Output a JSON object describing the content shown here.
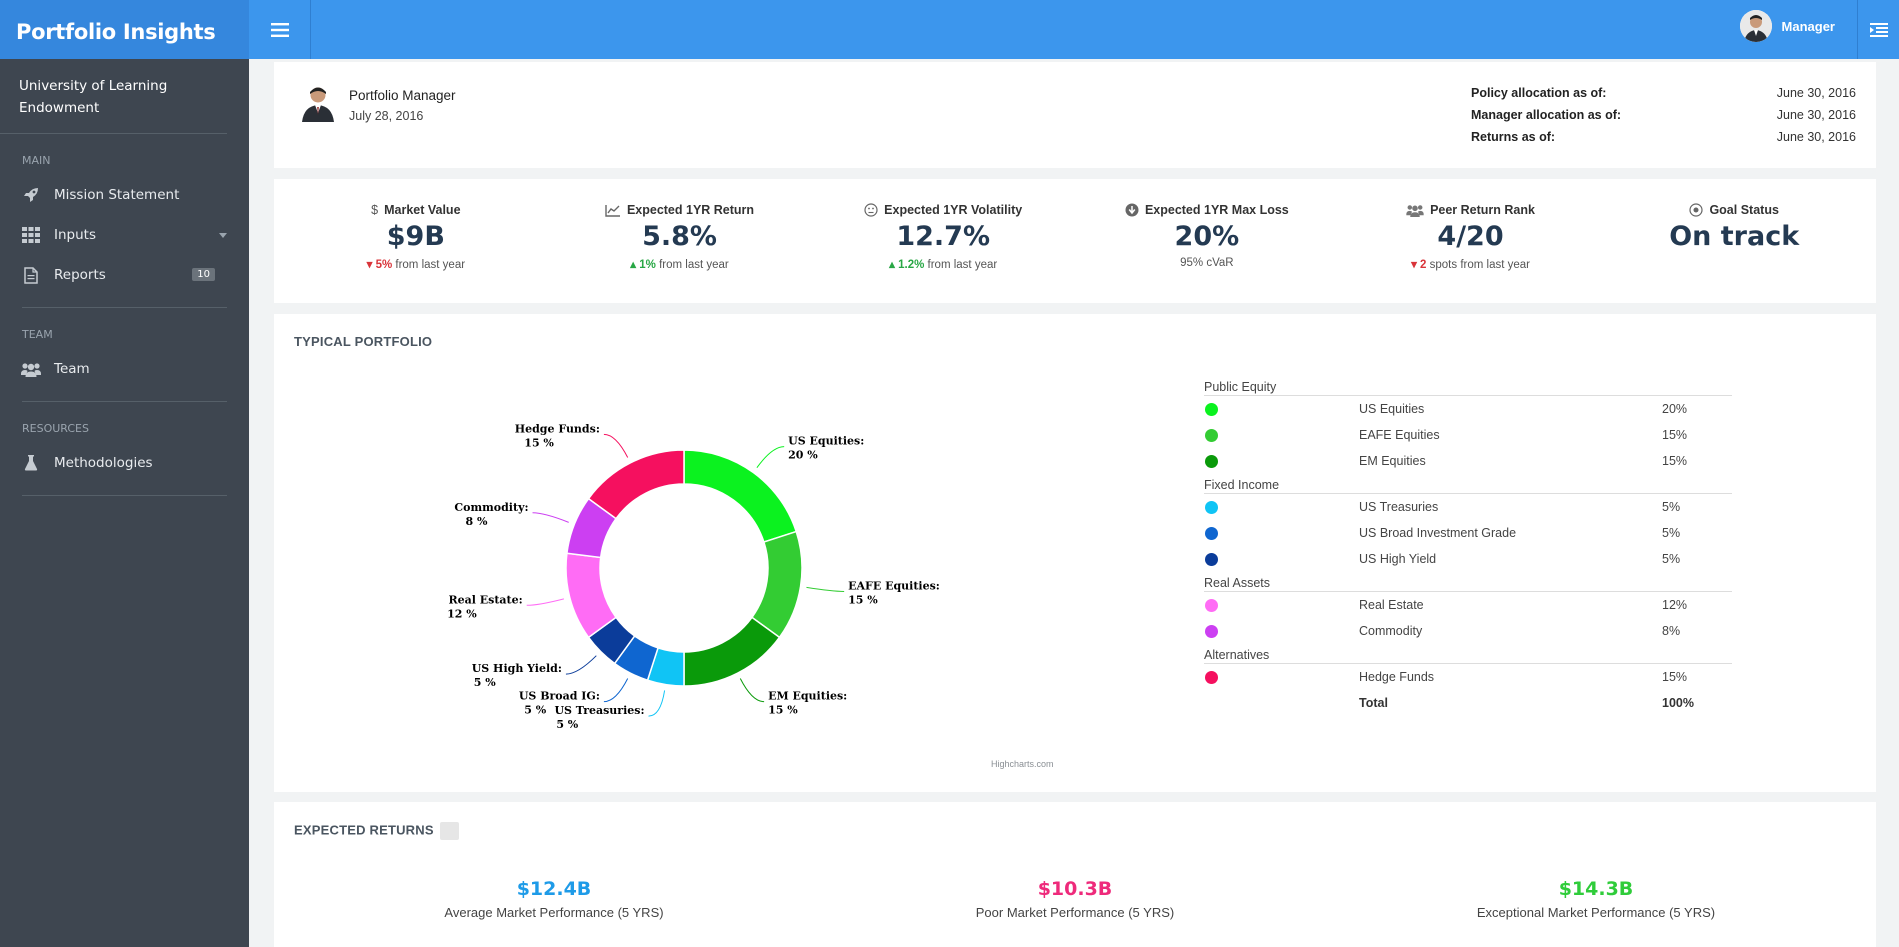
{
  "app": {
    "title": "Portfolio Insights",
    "user_name": "Manager"
  },
  "sidebar": {
    "org_name": "University of Learning Endowment",
    "sections": [
      {
        "title": "MAIN"
      },
      {
        "title": "TEAM"
      },
      {
        "title": "RESOURCES"
      }
    ],
    "items": [
      {
        "label": "Mission Statement",
        "icon": "rocket-icon"
      },
      {
        "label": "Inputs",
        "icon": "grid-icon"
      },
      {
        "label": "Reports",
        "icon": "document-icon",
        "badge": "10"
      },
      {
        "label": "Team",
        "icon": "users-icon"
      },
      {
        "label": "Methodologies",
        "icon": "flask-icon"
      }
    ]
  },
  "manager": {
    "title": "Portfolio Manager",
    "date": "July 28, 2016",
    "allocations": [
      {
        "label": "Policy allocation as of:",
        "value": "June 30, 2016"
      },
      {
        "label": "Manager allocation as of:",
        "value": "June 30, 2016"
      },
      {
        "label": "Returns as of:",
        "value": "June 30, 2016"
      }
    ]
  },
  "kpis": [
    {
      "label": "Market Value",
      "icon": "dollar-icon",
      "value": "$9B",
      "change": "5%",
      "direction": "down",
      "sub": "from last year"
    },
    {
      "label": "Expected 1YR Return",
      "icon": "line-chart-icon",
      "value": "5.8%",
      "change": "1%",
      "direction": "up",
      "sub": "from last year"
    },
    {
      "label": "Expected 1YR Volatility",
      "icon": "meh-face-icon",
      "value": "12.7%",
      "change": "1.2%",
      "direction": "up",
      "sub": "from last year"
    },
    {
      "label": "Expected 1YR Max Loss",
      "icon": "arrow-circle-down-icon",
      "value": "20%",
      "change": "",
      "direction": "none",
      "sub": "95% cVaR"
    },
    {
      "label": "Peer Return Rank",
      "icon": "users-icon",
      "value": "4/20",
      "change": "2",
      "direction": "down",
      "sub": "spots from last year"
    },
    {
      "label": "Goal Status",
      "icon": "target-icon",
      "value": "On track",
      "change": "",
      "direction": "none",
      "sub": ""
    }
  ],
  "portfolio": {
    "title": "TYPICAL PORTFOLIO",
    "credits": "Highcharts.com",
    "groups": [
      {
        "name": "Public Equity",
        "rows": [
          {
            "name": "US Equities",
            "pct": "20%",
            "color": "#0bf21f"
          },
          {
            "name": "EAFE Equities",
            "pct": "15%",
            "color": "#33cc33"
          },
          {
            "name": "EM Equities",
            "pct": "15%",
            "color": "#0a9a0a"
          }
        ]
      },
      {
        "name": "Fixed Income",
        "rows": [
          {
            "name": "US Treasuries",
            "pct": "5%",
            "color": "#10c4f5"
          },
          {
            "name": "US Broad Investment Grade",
            "pct": "5%",
            "color": "#0f66d0"
          },
          {
            "name": "US High Yield",
            "pct": "5%",
            "color": "#0b3c9a"
          }
        ]
      },
      {
        "name": "Real Assets",
        "rows": [
          {
            "name": "Real Estate",
            "pct": "12%",
            "color": "#ff6cf5"
          },
          {
            "name": "Commodity",
            "pct": "8%",
            "color": "#cc3ff2"
          }
        ]
      },
      {
        "name": "Alternatives",
        "rows": [
          {
            "name": "Hedge Funds",
            "pct": "15%",
            "color": "#f5105f"
          }
        ]
      }
    ],
    "total_label": "Total",
    "total_pct": "100%"
  },
  "chart_data": {
    "type": "pie",
    "title": "",
    "categories": [
      "US Equities",
      "EAFE Equities",
      "EM Equities",
      "US Treasuries",
      "US Broad IG",
      "US High Yield",
      "Real Estate",
      "Commodity",
      "Hedge Funds"
    ],
    "values": [
      20,
      15,
      15,
      5,
      5,
      5,
      12,
      8,
      15
    ],
    "labels": [
      "20 %",
      "15 %",
      "15 %",
      "5 %",
      "5 %",
      "5 %",
      "12 %",
      "8 %",
      "15 %"
    ],
    "colors": [
      "#0bf21f",
      "#33cc33",
      "#0a9a0a",
      "#10c4f5",
      "#0f66d0",
      "#0b3c9a",
      "#ff6cf5",
      "#cc3ff2",
      "#f5105f"
    ],
    "donut": true
  },
  "returns": {
    "title": "EXPECTED RETURNS",
    "items": [
      {
        "amount": "$12.4B",
        "desc": "Average Market Performance (5 YRS)",
        "color": "#1e9be8"
      },
      {
        "amount": "$10.3B",
        "desc": "Poor Market Performance (5 YRS)",
        "color": "#ee2a7b"
      },
      {
        "amount": "$14.3B",
        "desc": "Exceptional Market Performance (5 YRS)",
        "color": "#2fcc3a"
      }
    ]
  }
}
